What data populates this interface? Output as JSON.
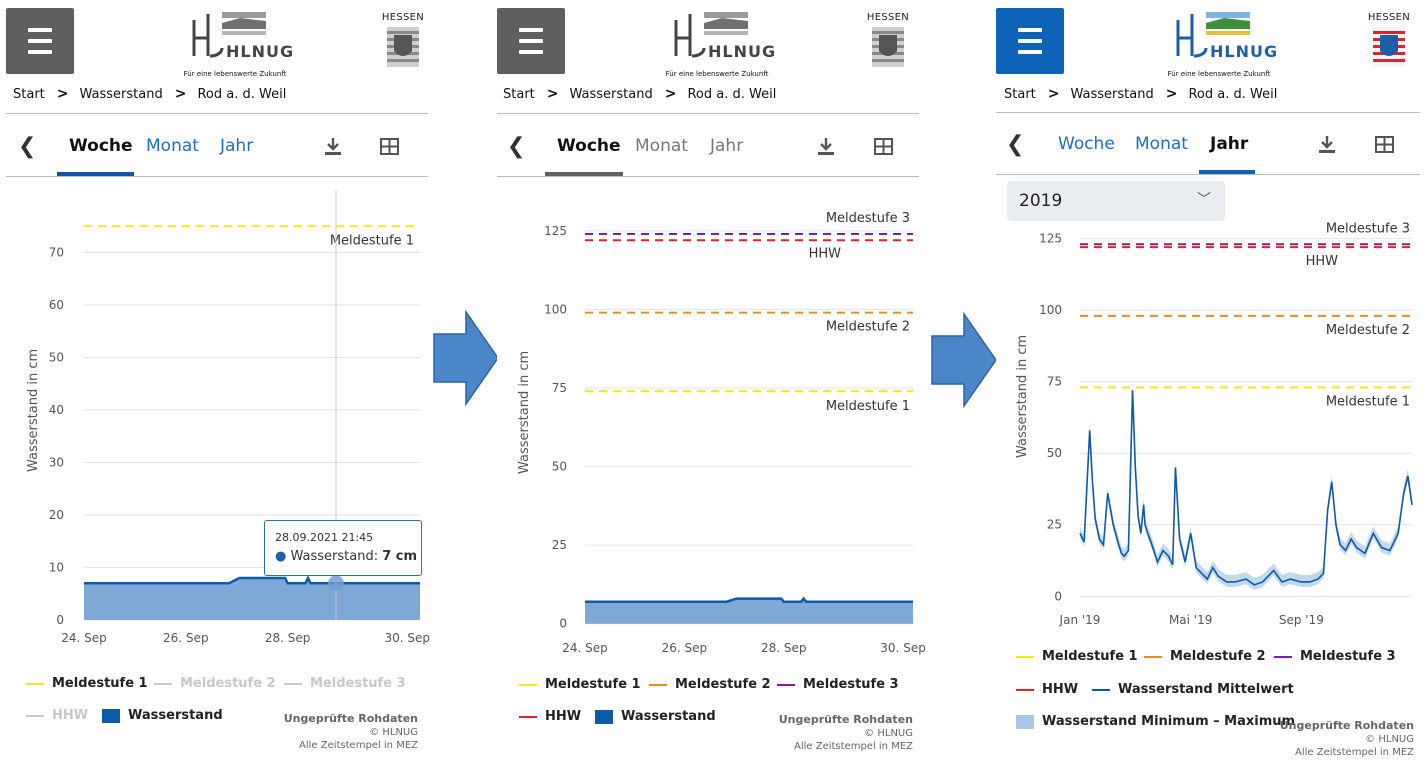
{
  "colors": {
    "menu_gray": "#5f5f5f",
    "menu_blue": "#0d63b8",
    "link_blue": "#1c6fc1",
    "tab_inactive_gray": "#777777",
    "meldestufe1": "#f5e616",
    "meldestufe2": "#f08a1d",
    "meldestufe3": "#7b1ea2",
    "hhw": "#d8262c",
    "series": "#0d5aa8",
    "area": "#7ea9d4",
    "minmax": "#a8c7e6",
    "arrow": "#4a86c8"
  },
  "icons": {
    "menu": "hamburger-icon",
    "back": "chevron-left-icon",
    "download": "download-icon",
    "table": "table-icon",
    "coat": "hessen-coat-of-arms-icon",
    "dropdown": "chevron-down-icon"
  },
  "shared": {
    "logo_text": "HLNUG",
    "logo_tagline": "Für eine lebenswerte Zukunft",
    "hessen_label": "HESSEN",
    "breadcrumb": [
      "Start",
      "Wasserstand",
      "Rod a. d. Weil"
    ],
    "breadcrumb_sep": ">",
    "tabs": [
      "Woche",
      "Monat",
      "Jahr"
    ],
    "y_axis_title": "Wasserstand in cm",
    "footnote_title": "Ungeprüfte Rohdaten",
    "footnote_copy": "© HLNUG",
    "footnote_tz": "Alle Zeitstempel in MEZ"
  },
  "panels": [
    {
      "id": "woche-zoomed",
      "theme": "gray",
      "active_tab": "Woche",
      "tooltip": {
        "date": "28.09.2021 21:45",
        "label": "Wasserstand:",
        "value": "7 cm"
      },
      "legend": [
        {
          "label": "Meldestufe 1",
          "kind": "line",
          "color": "#f5e616",
          "enabled": true
        },
        {
          "label": "Meldestufe 2",
          "kind": "line",
          "color": "#c8c8c8",
          "enabled": false
        },
        {
          "label": "Meldestufe 3",
          "kind": "line",
          "color": "#c8c8c8",
          "enabled": false
        },
        {
          "label": "HHW",
          "kind": "line",
          "color": "#c8c8c8",
          "enabled": false
        },
        {
          "label": "Wasserstand",
          "kind": "box",
          "color": "#0d5aa8",
          "enabled": true
        }
      ]
    },
    {
      "id": "woche-full",
      "theme": "gray",
      "active_tab": "Woche",
      "legend": [
        {
          "label": "Meldestufe 1",
          "kind": "line",
          "color": "#f5e616",
          "enabled": true
        },
        {
          "label": "Meldestufe 2",
          "kind": "line",
          "color": "#f08a1d",
          "enabled": true
        },
        {
          "label": "Meldestufe 3",
          "kind": "line",
          "color": "#7b1ea2",
          "enabled": true
        },
        {
          "label": "HHW",
          "kind": "line",
          "color": "#d8262c",
          "enabled": true
        },
        {
          "label": "Wasserstand",
          "kind": "box",
          "color": "#0d5aa8",
          "enabled": true
        }
      ]
    },
    {
      "id": "jahr",
      "theme": "blue",
      "active_tab": "Jahr",
      "year_select": "2019",
      "legend": [
        {
          "label": "Meldestufe 1",
          "kind": "line",
          "color": "#f5e616",
          "enabled": true
        },
        {
          "label": "Meldestufe 2",
          "kind": "line",
          "color": "#f08a1d",
          "enabled": true
        },
        {
          "label": "Meldestufe 3",
          "kind": "line",
          "color": "#7b1ea2",
          "enabled": true
        },
        {
          "label": "HHW",
          "kind": "line",
          "color": "#d8262c",
          "enabled": true
        },
        {
          "label": "Wasserstand Mittelwert",
          "kind": "line",
          "color": "#0d5aa8",
          "enabled": true
        },
        {
          "label": "Wasserstand Minimum – Maximum",
          "kind": "box",
          "color": "#a8c7e6",
          "enabled": true
        }
      ]
    }
  ],
  "chart_data": [
    {
      "type": "area",
      "ylabel": "Wasserstand in cm",
      "ylim": [
        0,
        80
      ],
      "yticks": [
        0,
        10,
        20,
        30,
        40,
        50,
        60,
        70
      ],
      "xticks": [
        "24. Sep",
        "26. Sep",
        "28. Sep",
        "30. Sep"
      ],
      "x_days": [
        24,
        30.6
      ],
      "series": [
        {
          "name": "Wasserstand",
          "x": [
            24,
            26.85,
            27.05,
            27.95,
            28.0,
            28.35,
            28.4,
            28.45,
            28.55,
            30.6
          ],
          "values": [
            7,
            7,
            8,
            8,
            7,
            7,
            8,
            7,
            7,
            7
          ]
        }
      ],
      "thresholds": [
        {
          "name": "Meldestufe 1",
          "value": 75
        }
      ]
    },
    {
      "type": "area",
      "ylabel": "Wasserstand in cm",
      "ylim": [
        -2,
        138
      ],
      "yticks": [
        0,
        25,
        50,
        75,
        100,
        125
      ],
      "xticks": [
        "24. Sep",
        "26. Sep",
        "28. Sep",
        "30. Sep"
      ],
      "x_days": [
        24,
        30.6
      ],
      "series": [
        {
          "name": "Wasserstand",
          "x": [
            24,
            26.85,
            27.05,
            27.95,
            28.0,
            28.35,
            28.4,
            28.45,
            30.6
          ],
          "values": [
            7,
            7,
            8,
            8,
            7,
            7,
            8,
            7,
            7
          ]
        }
      ],
      "thresholds": [
        {
          "name": "Meldestufe 1",
          "value": 74
        },
        {
          "name": "Meldestufe 2",
          "value": 99
        },
        {
          "name": "Meldestufe 3",
          "value": 124
        },
        {
          "name": "HHW",
          "value": 122
        }
      ]
    },
    {
      "type": "line",
      "ylabel": "Wasserstand in cm",
      "ylim": [
        -2,
        128
      ],
      "yticks": [
        0,
        25,
        50,
        75,
        100,
        125
      ],
      "xticks": [
        "Jan '19",
        "Mai '19",
        "Sep '19"
      ],
      "x_months": [
        0,
        12
      ],
      "series": [
        {
          "name": "Wasserstand Mittelwert",
          "x": [
            0,
            0.15,
            0.35,
            0.45,
            0.55,
            0.7,
            0.85,
            1.0,
            1.2,
            1.4,
            1.5,
            1.6,
            1.75,
            1.9,
            2.0,
            2.1,
            2.2,
            2.3,
            2.35,
            2.45,
            2.6,
            2.8,
            3.0,
            3.2,
            3.35,
            3.45,
            3.6,
            3.8,
            4.0,
            4.2,
            4.4,
            4.6,
            4.8,
            5.0,
            5.3,
            5.6,
            6.0,
            6.3,
            6.6,
            7.0,
            7.3,
            7.6,
            8.0,
            8.3,
            8.6,
            8.8,
            8.95,
            9.1,
            9.25,
            9.4,
            9.6,
            9.8,
            10.0,
            10.3,
            10.6,
            10.9,
            11.2,
            11.5,
            11.7,
            11.85,
            12.0
          ],
          "values": [
            22,
            19,
            58,
            40,
            27,
            20,
            18,
            36,
            25,
            18,
            15,
            14,
            16,
            72,
            45,
            28,
            22,
            32,
            25,
            22,
            18,
            12,
            16,
            14,
            11,
            45,
            20,
            12,
            22,
            10,
            8,
            6,
            10,
            7,
            5,
            5,
            6,
            4,
            5,
            9,
            5,
            6,
            5,
            5,
            6,
            8,
            30,
            40,
            25,
            18,
            16,
            20,
            17,
            15,
            22,
            17,
            16,
            22,
            36,
            42,
            32
          ]
        }
      ],
      "thresholds": [
        {
          "name": "Meldestufe 1",
          "value": 73
        },
        {
          "name": "Meldestufe 2",
          "value": 98
        },
        {
          "name": "Meldestufe 3",
          "value": 123
        },
        {
          "name": "HHW",
          "value": 122
        }
      ]
    }
  ]
}
